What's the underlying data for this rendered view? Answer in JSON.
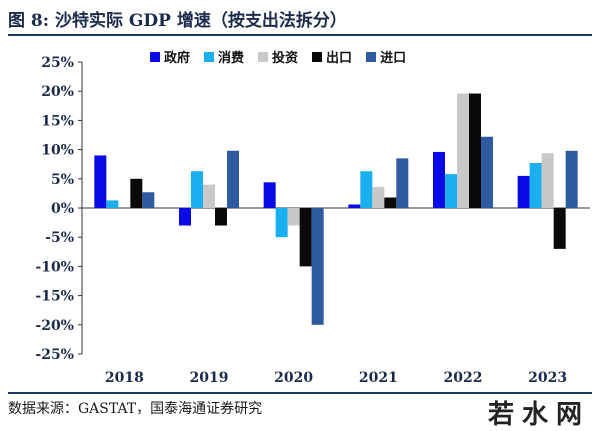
{
  "header": {
    "title": "图 8:  沙特实际 GDP 增速（按支出法拆分）"
  },
  "footer": {
    "source": "数据来源：GASTAT，国泰海通证券研究",
    "watermark": "若水网"
  },
  "chart_data": {
    "type": "bar",
    "categories": [
      "2018",
      "2019",
      "2020",
      "2021",
      "2022",
      "2023"
    ],
    "series": [
      {
        "name": "政府",
        "color": "#0a0ae6",
        "values": [
          9.0,
          -3.0,
          4.4,
          0.6,
          9.6,
          5.5
        ]
      },
      {
        "name": "消费",
        "color": "#1ab0f0",
        "values": [
          1.3,
          6.3,
          -5.0,
          6.3,
          5.8,
          7.7
        ]
      },
      {
        "name": "投资",
        "color": "#c8c8c8",
        "values": [
          0.0,
          4.0,
          -3.0,
          3.6,
          19.6,
          9.4
        ]
      },
      {
        "name": "出口",
        "color": "#0a0a0a",
        "values": [
          5.0,
          -3.0,
          -10.0,
          1.8,
          19.6,
          -7.0
        ]
      },
      {
        "name": "进口",
        "color": "#2e5aa0",
        "values": [
          2.7,
          9.8,
          -20.0,
          8.5,
          12.2,
          9.8
        ]
      }
    ],
    "ylim": [
      -25,
      25
    ],
    "yticks": [
      25,
      20,
      15,
      10,
      5,
      0,
      -5,
      -10,
      -15,
      -20,
      -25
    ],
    "ytick_format": "%",
    "legend_position": "top",
    "grid": false
  }
}
